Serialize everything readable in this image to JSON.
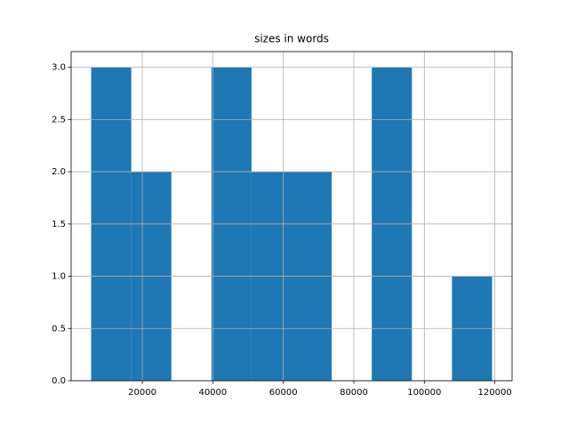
{
  "chart_data": {
    "type": "histogram",
    "title": "sizes in words",
    "bins": [
      5500,
      16870,
      28240,
      39610,
      50980,
      62350,
      73720,
      85090,
      96460,
      107830,
      119200
    ],
    "values": [
      3,
      2,
      0,
      3,
      2,
      2,
      0,
      3,
      0,
      1
    ],
    "color": "#1f77b4",
    "xlim": [
      -185,
      124885
    ],
    "xticks": [
      20000,
      40000,
      60000,
      80000,
      100000,
      120000
    ],
    "ylim": [
      0,
      3.15
    ],
    "yticks": [
      {
        "value": 0,
        "label": "0.0"
      },
      0.5,
      {
        "value": 1,
        "label": "1.0"
      },
      1.5,
      {
        "value": 2,
        "label": "2.0"
      },
      2.5,
      {
        "value": 3,
        "label": "3.0"
      }
    ],
    "grid": true
  }
}
